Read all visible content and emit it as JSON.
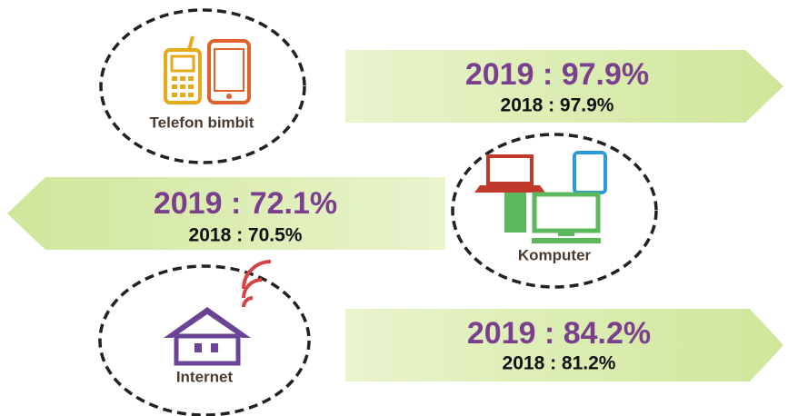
{
  "items": [
    {
      "label": "Telefon bimbit",
      "year2019": "2019 : 97.9%",
      "year2018": "2018 : 97.9%"
    },
    {
      "label": "Komputer",
      "year2019": "2019 : 72.1%",
      "year2018": "2018 : 70.5%"
    },
    {
      "label": "Internet",
      "year2019": "2019 : 84.2%",
      "year2018": "2018 : 81.2%"
    }
  ]
}
